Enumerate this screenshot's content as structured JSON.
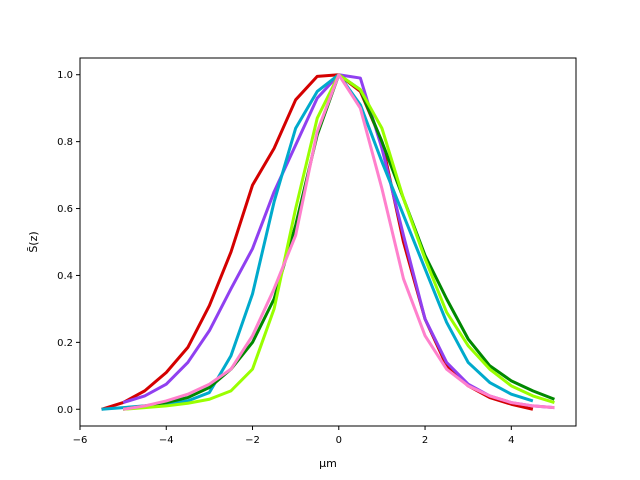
{
  "chart_data": {
    "type": "line",
    "title": "",
    "xlabel": "μm",
    "ylabel": "S̄(z)",
    "xlim": [
      -6.0,
      5.5
    ],
    "ylim": [
      -0.05,
      1.05
    ],
    "xticks": [
      -6,
      -4,
      -2,
      0,
      2,
      4
    ],
    "yticks": [
      0.0,
      0.2,
      0.4,
      0.6,
      0.8,
      1.0
    ],
    "xtick_labels": [
      "−6",
      "−4",
      "−2",
      "0",
      "2",
      "4"
    ],
    "ytick_labels": [
      "0.0",
      "0.2",
      "0.4",
      "0.6",
      "0.8",
      "1.0"
    ],
    "grid": false,
    "series": [
      {
        "color": "#d40000",
        "x": [
          -5.5,
          -5.0,
          -4.5,
          -4.0,
          -3.5,
          -3.0,
          -2.5,
          -2.0,
          -1.5,
          -1.0,
          -0.5,
          0.0,
          0.5,
          1.0,
          1.5,
          2.0,
          2.5,
          3.0,
          3.5,
          4.0,
          4.5
        ],
        "y": [
          0.0,
          0.02,
          0.055,
          0.11,
          0.185,
          0.31,
          0.47,
          0.67,
          0.78,
          0.925,
          0.995,
          1.0,
          0.95,
          0.8,
          0.5,
          0.27,
          0.13,
          0.07,
          0.035,
          0.015,
          0.0
        ]
      },
      {
        "color": "#9040f0",
        "x": [
          -5.0,
          -4.5,
          -4.0,
          -3.5,
          -3.0,
          -2.5,
          -2.0,
          -1.5,
          -1.0,
          -0.5,
          0.0,
          0.5,
          1.0,
          1.5,
          2.0,
          2.5,
          3.0,
          3.5,
          4.0,
          4.5,
          5.0
        ],
        "y": [
          0.02,
          0.04,
          0.075,
          0.14,
          0.235,
          0.36,
          0.48,
          0.65,
          0.79,
          0.93,
          1.0,
          0.99,
          0.78,
          0.52,
          0.27,
          0.14,
          0.075,
          0.04,
          0.02,
          0.01,
          0.005
        ]
      },
      {
        "color": "#00aacc",
        "x": [
          -5.5,
          -5.0,
          -4.5,
          -4.0,
          -3.5,
          -3.0,
          -2.5,
          -2.0,
          -1.5,
          -1.0,
          -0.5,
          0.0,
          0.5,
          1.0,
          1.5,
          2.0,
          2.5,
          3.0,
          3.5,
          4.0,
          4.5
        ],
        "y": [
          0.0,
          0.005,
          0.01,
          0.015,
          0.025,
          0.05,
          0.16,
          0.345,
          0.62,
          0.84,
          0.95,
          1.0,
          0.91,
          0.74,
          0.58,
          0.42,
          0.26,
          0.14,
          0.08,
          0.045,
          0.025
        ]
      },
      {
        "color": "#008800",
        "x": [
          -5.0,
          -4.5,
          -4.0,
          -3.5,
          -3.0,
          -2.5,
          -2.0,
          -1.5,
          -1.0,
          -0.5,
          0.0,
          0.5,
          1.0,
          1.5,
          2.0,
          2.5,
          3.0,
          3.5,
          4.0,
          4.5,
          5.0
        ],
        "y": [
          0.0,
          0.01,
          0.02,
          0.035,
          0.065,
          0.12,
          0.2,
          0.33,
          0.55,
          0.82,
          1.0,
          0.955,
          0.8,
          0.63,
          0.46,
          0.33,
          0.21,
          0.13,
          0.085,
          0.055,
          0.03
        ]
      },
      {
        "color": "#99ff00",
        "x": [
          -5.0,
          -4.5,
          -4.0,
          -3.5,
          -3.0,
          -2.5,
          -2.0,
          -1.5,
          -1.0,
          -0.5,
          0.0,
          0.5,
          1.0,
          1.5,
          2.0,
          2.5,
          3.0,
          3.5,
          4.0,
          4.5,
          5.0
        ],
        "y": [
          0.0,
          0.005,
          0.01,
          0.018,
          0.03,
          0.055,
          0.12,
          0.3,
          0.6,
          0.87,
          1.0,
          0.955,
          0.84,
          0.63,
          0.45,
          0.29,
          0.19,
          0.12,
          0.07,
          0.04,
          0.02
        ]
      },
      {
        "color": "#ff80cc",
        "x": [
          -5.0,
          -4.5,
          -4.0,
          -3.5,
          -3.0,
          -2.5,
          -2.0,
          -1.5,
          -1.0,
          -0.5,
          0.0,
          0.5,
          1.0,
          1.5,
          2.0,
          2.5,
          3.0,
          3.5,
          4.0,
          4.5,
          5.0
        ],
        "y": [
          0.0,
          0.01,
          0.025,
          0.045,
          0.075,
          0.12,
          0.22,
          0.36,
          0.52,
          0.83,
          1.0,
          0.9,
          0.66,
          0.39,
          0.22,
          0.12,
          0.07,
          0.04,
          0.02,
          0.01,
          0.005
        ]
      }
    ]
  }
}
